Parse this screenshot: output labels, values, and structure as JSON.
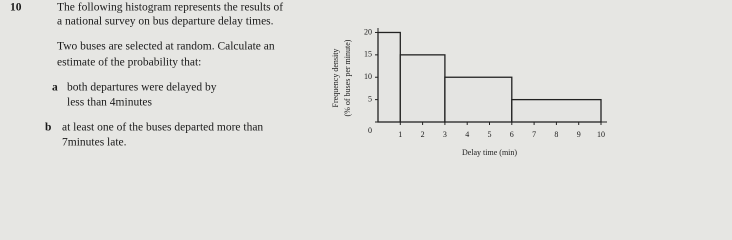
{
  "question": {
    "number": "10",
    "intro": [
      "The following histogram represents the results of",
      "a national survey on bus departure delay times."
    ],
    "prompt": [
      "Two buses are selected at random. Calculate an",
      "estimate of the probability that:"
    ],
    "parts": [
      {
        "label": "a",
        "lines": [
          "both departures were delayed by",
          "less than 4minutes"
        ]
      },
      {
        "label": "b",
        "lines": [
          "at least one of the buses departed more than",
          "7minutes late."
        ]
      }
    ]
  },
  "chart_data": {
    "type": "histogram",
    "bins": [
      0,
      1,
      3,
      6,
      10
    ],
    "values": [
      20,
      15,
      10,
      5
    ],
    "x_label": "Delay time (min)",
    "y_label": [
      "Frequency density",
      "(% of buses per minute)"
    ],
    "xlim": [
      0,
      10
    ],
    "xticks": [
      1,
      2,
      3,
      4,
      5,
      6,
      7,
      8,
      9,
      10
    ],
    "ylim": [
      0,
      21
    ],
    "yticks": [
      0,
      5,
      10,
      15,
      20
    ],
    "color": "#e4e4e2"
  }
}
